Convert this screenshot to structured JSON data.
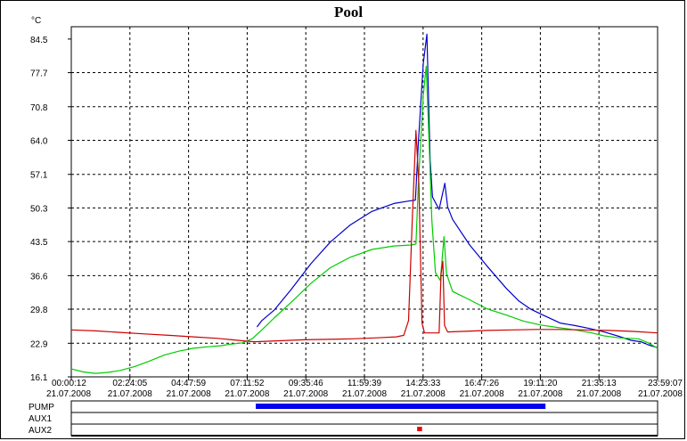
{
  "chart_data": {
    "type": "line",
    "title": "Pool",
    "y_unit": "°C",
    "ylim": [
      16.1,
      87.0
    ],
    "y_ticks": [
      "84.5",
      "77.7",
      "70.8",
      "64.0",
      "57.1",
      "50.3",
      "43.5",
      "36.6",
      "29.8",
      "22.9",
      "16.1"
    ],
    "x_range_hours": [
      0.0033,
      23.985
    ],
    "x_ticks": [
      {
        "time": "00:00:12",
        "date": "21.07.2008",
        "hours": 0.0033
      },
      {
        "time": "02:24:05",
        "date": "21.07.2008",
        "hours": 2.401
      },
      {
        "time": "04:47:59",
        "date": "21.07.2008",
        "hours": 4.8
      },
      {
        "time": "07:11:52",
        "date": "21.07.2008",
        "hours": 7.198
      },
      {
        "time": "09:35:46",
        "date": "21.07.2008",
        "hours": 9.596
      },
      {
        "time": "11:59:39",
        "date": "21.07.2008",
        "hours": 11.994
      },
      {
        "time": "14:23:33",
        "date": "21.07.2008",
        "hours": 14.393
      },
      {
        "time": "16:47:26",
        "date": "21.07.2008",
        "hours": 16.791
      },
      {
        "time": "19:11:20",
        "date": "21.07.2008",
        "hours": 19.189
      },
      {
        "time": "21:35:13",
        "date": "21.07.2008",
        "hours": 21.587
      },
      {
        "time": "23:59:07",
        "date": "21.07.2008",
        "hours": 23.985
      }
    ],
    "grid": true,
    "series": [
      {
        "color": "#0000cc",
        "points": [
          [
            7.6,
            26.2
          ],
          [
            7.8,
            27.5
          ],
          [
            8.3,
            29.6
          ],
          [
            9.0,
            33.8
          ],
          [
            9.8,
            39.0
          ],
          [
            10.6,
            43.4
          ],
          [
            11.4,
            46.8
          ],
          [
            12.3,
            49.6
          ],
          [
            13.2,
            51.2
          ],
          [
            13.8,
            51.7
          ],
          [
            14.08,
            51.9
          ],
          [
            14.2,
            63.5
          ],
          [
            14.4,
            79.5
          ],
          [
            14.55,
            85.5
          ],
          [
            14.68,
            60.0
          ],
          [
            14.78,
            52.5
          ],
          [
            15.05,
            50.0
          ],
          [
            15.28,
            55.3
          ],
          [
            15.4,
            50.5
          ],
          [
            15.6,
            48.0
          ],
          [
            16.3,
            42.8
          ],
          [
            17.0,
            38.6
          ],
          [
            17.8,
            34.0
          ],
          [
            18.3,
            31.5
          ],
          [
            18.8,
            29.8
          ],
          [
            19.3,
            28.6
          ],
          [
            20.0,
            27.0
          ],
          [
            20.6,
            26.5
          ],
          [
            21.2,
            25.9
          ],
          [
            21.8,
            25.2
          ],
          [
            22.4,
            24.3
          ],
          [
            22.9,
            23.5
          ],
          [
            23.3,
            23.2
          ],
          [
            23.6,
            22.6
          ],
          [
            23.985,
            22.0
          ]
        ]
      },
      {
        "color": "#00cc00",
        "points": [
          [
            0.0033,
            17.7
          ],
          [
            0.5,
            17.1
          ],
          [
            1.0,
            16.8
          ],
          [
            1.5,
            17.0
          ],
          [
            2.0,
            17.4
          ],
          [
            2.6,
            18.2
          ],
          [
            3.2,
            19.3
          ],
          [
            3.8,
            20.5
          ],
          [
            4.4,
            21.3
          ],
          [
            5.0,
            21.9
          ],
          [
            5.6,
            22.2
          ],
          [
            6.1,
            22.4
          ],
          [
            6.5,
            22.7
          ],
          [
            7.0,
            23.0
          ],
          [
            7.4,
            23.8
          ],
          [
            7.8,
            25.6
          ],
          [
            8.3,
            28.0
          ],
          [
            9.0,
            31.2
          ],
          [
            9.8,
            35.0
          ],
          [
            10.6,
            38.2
          ],
          [
            11.4,
            40.3
          ],
          [
            12.3,
            41.9
          ],
          [
            13.2,
            42.6
          ],
          [
            13.9,
            42.8
          ],
          [
            14.1,
            43.0
          ],
          [
            14.2,
            55.0
          ],
          [
            14.4,
            73.0
          ],
          [
            14.52,
            79.0
          ],
          [
            14.65,
            62.0
          ],
          [
            14.75,
            48.0
          ],
          [
            14.9,
            37.2
          ],
          [
            15.1,
            35.6
          ],
          [
            15.25,
            44.5
          ],
          [
            15.35,
            37.0
          ],
          [
            15.6,
            33.4
          ],
          [
            16.3,
            31.7
          ],
          [
            17.0,
            29.9
          ],
          [
            17.8,
            28.6
          ],
          [
            18.5,
            27.4
          ],
          [
            19.2,
            26.6
          ],
          [
            19.9,
            26.1
          ],
          [
            20.5,
            25.7
          ],
          [
            21.2,
            25.1
          ],
          [
            21.8,
            24.4
          ],
          [
            22.4,
            24.0
          ],
          [
            23.2,
            23.8
          ],
          [
            23.6,
            23.0
          ],
          [
            23.985,
            21.9
          ]
        ]
      },
      {
        "color": "#cc0000",
        "points": [
          [
            0.0033,
            25.6
          ],
          [
            1.0,
            25.4
          ],
          [
            2.0,
            25.1
          ],
          [
            3.0,
            24.8
          ],
          [
            4.0,
            24.5
          ],
          [
            5.0,
            24.2
          ],
          [
            6.0,
            23.9
          ],
          [
            7.0,
            23.4
          ],
          [
            7.5,
            23.2
          ],
          [
            8.5,
            23.4
          ],
          [
            9.5,
            23.6
          ],
          [
            10.5,
            23.7
          ],
          [
            11.5,
            23.8
          ],
          [
            12.5,
            24.0
          ],
          [
            13.3,
            24.2
          ],
          [
            13.6,
            24.5
          ],
          [
            13.8,
            27.5
          ],
          [
            13.95,
            48.0
          ],
          [
            14.1,
            66.0
          ],
          [
            14.22,
            55.0
          ],
          [
            14.35,
            27.0
          ],
          [
            14.45,
            25.0
          ],
          [
            15.05,
            25.0
          ],
          [
            15.13,
            37.0
          ],
          [
            15.2,
            39.5
          ],
          [
            15.27,
            26.5
          ],
          [
            15.4,
            25.2
          ],
          [
            16.0,
            25.3
          ],
          [
            17.0,
            25.5
          ],
          [
            18.0,
            25.6
          ],
          [
            19.0,
            25.7
          ],
          [
            20.0,
            25.7
          ],
          [
            21.0,
            25.6
          ],
          [
            22.0,
            25.5
          ],
          [
            23.0,
            25.3
          ],
          [
            23.985,
            25.0
          ]
        ]
      }
    ]
  },
  "status_rows": [
    {
      "label": "PUMP",
      "bars": [
        {
          "from": 7.55,
          "to": 19.4,
          "color": "#0000ee"
        }
      ]
    },
    {
      "label": "AUX1",
      "bars": []
    },
    {
      "label": "AUX2",
      "bars": [
        {
          "from": 14.15,
          "to": 14.35,
          "color": "#ee0000"
        }
      ]
    }
  ]
}
